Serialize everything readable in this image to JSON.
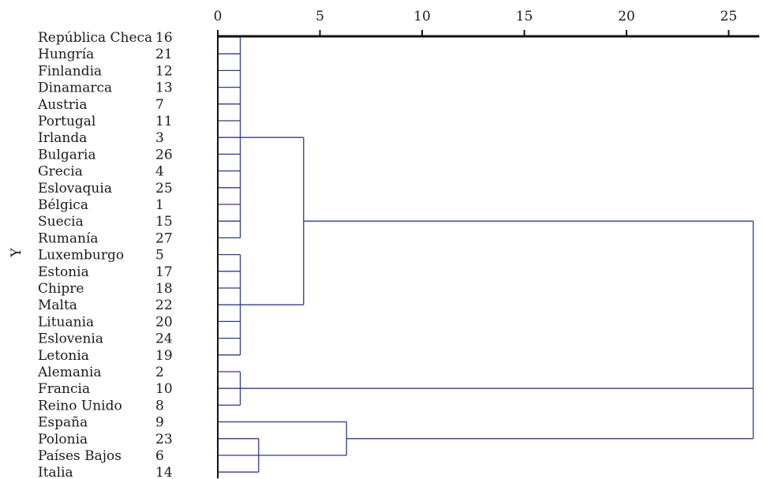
{
  "chart_data": {
    "type": "dendrogram",
    "ylabel": "Y",
    "xlim": [
      0,
      26.5
    ],
    "x_ticks": [
      {
        "value": 0,
        "label": "0"
      },
      {
        "value": 5,
        "label": "5"
      },
      {
        "value": 10,
        "label": "10"
      },
      {
        "value": 15,
        "label": "15"
      },
      {
        "value": 20,
        "label": "20"
      },
      {
        "value": 25,
        "label": "25"
      }
    ],
    "leaves": [
      {
        "name": "República Checa",
        "id": "16"
      },
      {
        "name": "Hungría",
        "id": "21"
      },
      {
        "name": "Finlandia",
        "id": "12"
      },
      {
        "name": "Dinamarca",
        "id": "13"
      },
      {
        "name": "Austria",
        "id": "7"
      },
      {
        "name": "Portugal",
        "id": "11"
      },
      {
        "name": "Irlanda",
        "id": "3"
      },
      {
        "name": "Bulgaria",
        "id": "26"
      },
      {
        "name": "Grecia",
        "id": "4"
      },
      {
        "name": "Eslovaquia",
        "id": "25"
      },
      {
        "name": "Bélgica",
        "id": "1"
      },
      {
        "name": "Suecia",
        "id": "15"
      },
      {
        "name": "Rumanía",
        "id": "27"
      },
      {
        "name": "Luxemburgo",
        "id": "5"
      },
      {
        "name": "Estonia",
        "id": "17"
      },
      {
        "name": "Chipre",
        "id": "18"
      },
      {
        "name": "Malta",
        "id": "22"
      },
      {
        "name": "Lituania",
        "id": "20"
      },
      {
        "name": "Eslovenia",
        "id": "24"
      },
      {
        "name": "Letonia",
        "id": "19"
      },
      {
        "name": "Alemania",
        "id": "2"
      },
      {
        "name": "Francia",
        "id": "10"
      },
      {
        "name": "Reino Unido",
        "id": "8"
      },
      {
        "name": "España",
        "id": "9"
      },
      {
        "name": "Polonia",
        "id": "23"
      },
      {
        "name": "Países Bajos",
        "id": "6"
      },
      {
        "name": "Italia",
        "id": "14"
      }
    ],
    "merges": [
      {
        "members": [
          0,
          12
        ],
        "height": 1.1
      },
      {
        "members": [
          13,
          19
        ],
        "height": 1.1
      },
      {
        "members": [
          20,
          22
        ],
        "height": 1.1
      },
      {
        "members": [
          0,
          19
        ],
        "height": 4.2
      },
      {
        "members": [
          24,
          26
        ],
        "height": 2.0
      },
      {
        "members": [
          23,
          26
        ],
        "height": 6.3
      },
      {
        "members": [
          0,
          26
        ],
        "height": 26.2
      }
    ]
  },
  "colors": {
    "tree": "#2e3b8e",
    "axis": "#111111",
    "text": "#1a1a1a"
  }
}
